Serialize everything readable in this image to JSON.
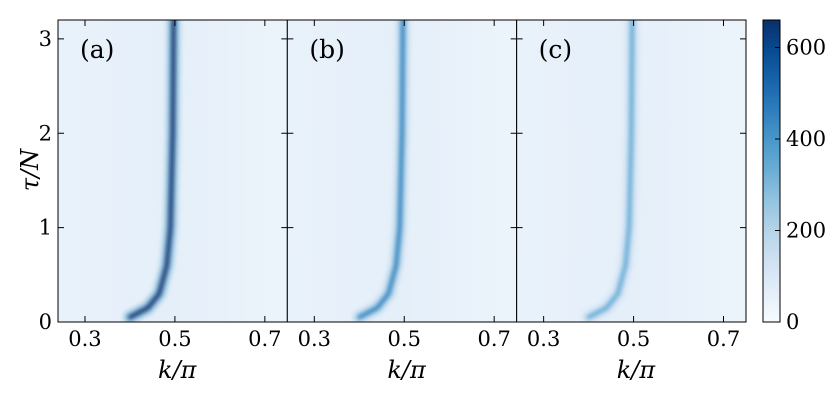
{
  "chart_data": {
    "type": "heatmap",
    "colormap": "Blues",
    "panels": [
      {
        "label": "(a)",
        "ridge_peak_intensity": 650
      },
      {
        "label": "(b)",
        "ridge_peak_intensity": 450
      },
      {
        "label": "(c)",
        "ridge_peak_intensity": 340
      }
    ],
    "ridge_k_over_pi": [
      {
        "tau_over_N": 0.05,
        "k_over_pi": 0.4
      },
      {
        "tau_over_N": 0.15,
        "k_over_pi": 0.44
      },
      {
        "tau_over_N": 0.3,
        "k_over_pi": 0.465
      },
      {
        "tau_over_N": 0.6,
        "k_over_pi": 0.482
      },
      {
        "tau_over_N": 1.0,
        "k_over_pi": 0.49
      },
      {
        "tau_over_N": 2.0,
        "k_over_pi": 0.495
      },
      {
        "tau_over_N": 3.2,
        "k_over_pi": 0.497
      }
    ],
    "xlabel": "k/π",
    "ylabel": "τ/N",
    "xlim": [
      0.24,
      0.75
    ],
    "ylim": [
      0,
      3.2
    ],
    "xticks": [
      "0.3",
      "0.5",
      "0.7"
    ],
    "xtick_values": [
      0.3,
      0.5,
      0.7
    ],
    "yticks": [
      "0",
      "1",
      "2",
      "3"
    ],
    "ytick_values": [
      0,
      1,
      2,
      3
    ],
    "colorbar": {
      "range": [
        0,
        660
      ],
      "ticks": [
        "0",
        "200",
        "400",
        "600"
      ],
      "tick_values": [
        0,
        200,
        400,
        600
      ]
    },
    "grid": false
  }
}
